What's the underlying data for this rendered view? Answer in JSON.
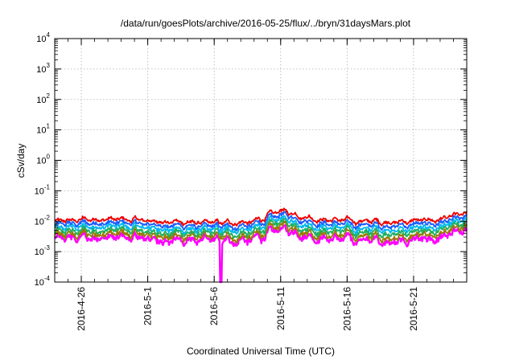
{
  "chart_data": {
    "type": "line",
    "title": "/data/run/goesPlots/archive/2016-05-25/flux/../bryn/31daysMars.plot",
    "xlabel": "Coordinated Universal Time (UTC)",
    "ylabel": "cSv/day",
    "yscale": "log",
    "ylim": [
      0.0001,
      10000
    ],
    "y_ticks": [
      {
        "base": "10",
        "exp": "4"
      },
      {
        "base": "10",
        "exp": "3"
      },
      {
        "base": "10",
        "exp": "2"
      },
      {
        "base": "10",
        "exp": "1"
      },
      {
        "base": "10",
        "exp": "0"
      },
      {
        "base": "10",
        "exp": "-1"
      },
      {
        "base": "10",
        "exp": "-2"
      },
      {
        "base": "10",
        "exp": "-3"
      },
      {
        "base": "10",
        "exp": "-4"
      }
    ],
    "xlim": [
      "2016-04-24",
      "2016-05-25"
    ],
    "x_ticks": [
      "2016-4-26",
      "2016-5-1",
      "2016-5-6",
      "2016-5-11",
      "2016-5-16",
      "2016-5-21"
    ],
    "grid": true,
    "series_colors": [
      "#ee0000",
      "#1a5cff",
      "#00b8f0",
      "#20b060",
      "#9a7a00",
      "#ff00ff"
    ],
    "key_points": {
      "x": [
        "2016-04-24",
        "2016-04-27",
        "2016-04-30",
        "2016-05-03",
        "2016-05-06",
        "2016-05-09",
        "2016-05-11",
        "2016-05-14",
        "2016-05-17",
        "2016-05-20",
        "2016-05-23",
        "2016-05-25"
      ],
      "top_series": [
        0.0095,
        0.012,
        0.011,
        0.0095,
        0.0085,
        0.0095,
        0.022,
        0.0115,
        0.01,
        0.0095,
        0.0115,
        0.017
      ],
      "bottom_series": [
        0.0025,
        0.003,
        0.0028,
        0.0024,
        0.0022,
        0.0024,
        0.0055,
        0.0028,
        0.0024,
        0.0022,
        0.0027,
        0.0045
      ]
    },
    "dip": {
      "date": "2016-05-06",
      "value": 0.0001
    }
  }
}
